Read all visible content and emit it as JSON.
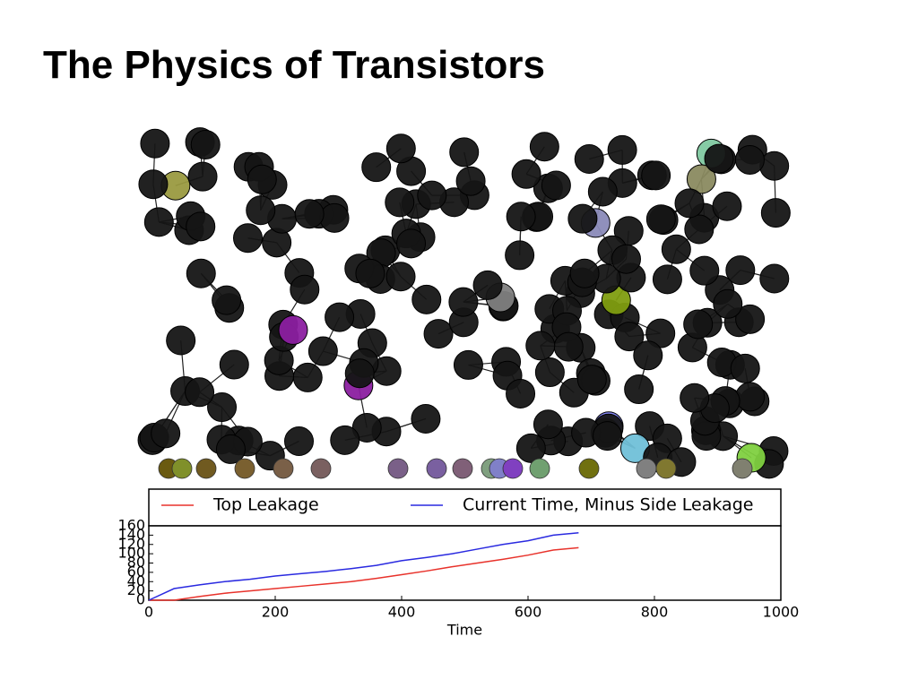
{
  "title": "The Physics of Transistors",
  "chart_data": {
    "type": "line",
    "x": [
      0,
      40,
      80,
      120,
      160,
      200,
      240,
      280,
      320,
      360,
      400,
      440,
      480,
      520,
      560,
      600,
      640,
      680
    ],
    "series": [
      {
        "name": "Top Leakage",
        "color": "#e8322b",
        "values": [
          0,
          0,
          8,
          15,
          20,
          25,
          30,
          35,
          40,
          47,
          55,
          63,
          72,
          80,
          88,
          97,
          108,
          113
        ]
      },
      {
        "name": "Current Time, Minus Side Leakage",
        "color": "#2a2ae0",
        "values": [
          0,
          25,
          33,
          40,
          45,
          52,
          57,
          62,
          68,
          75,
          85,
          92,
          100,
          110,
          120,
          128,
          140,
          145
        ]
      }
    ],
    "xlabel": "Time",
    "xlim": [
      0,
      1000
    ],
    "xticks": [
      0,
      200,
      400,
      600,
      800,
      1000
    ],
    "ylim": [
      0,
      160
    ],
    "yticks": [
      0,
      20,
      40,
      60,
      80,
      100,
      120,
      140,
      160
    ]
  }
}
